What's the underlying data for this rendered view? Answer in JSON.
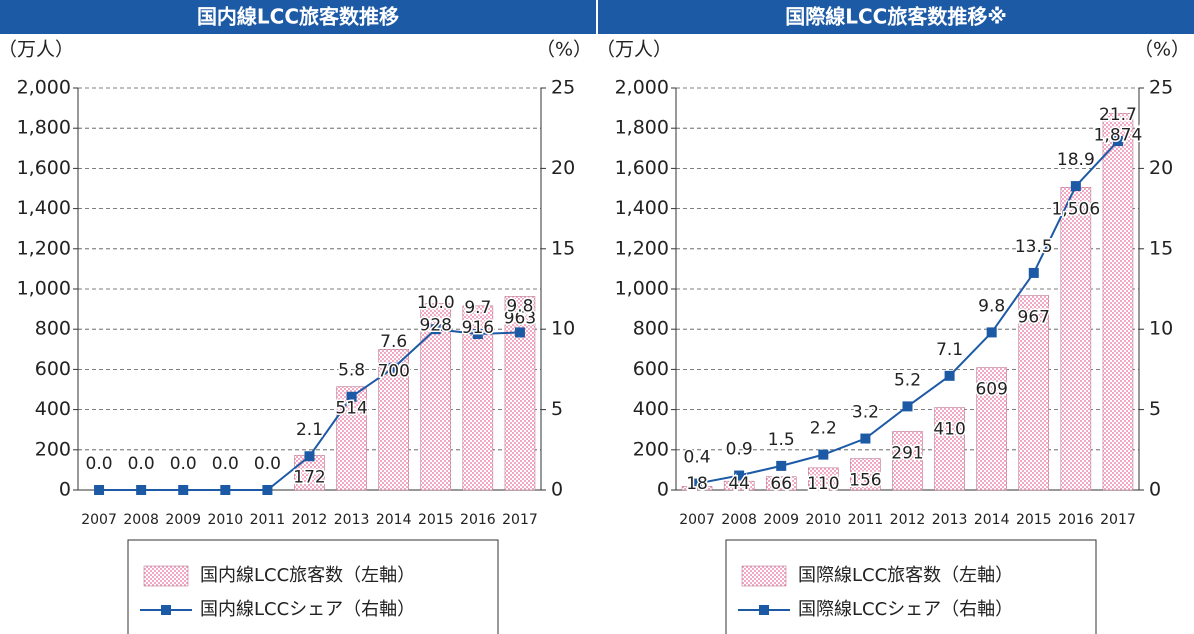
{
  "chart_data": [
    {
      "type": "bar-line",
      "title": "国内線LCC旅客数推移",
      "y_label": "（万人）",
      "y2_label": "（%）",
      "categories": [
        "2007",
        "2008",
        "2009",
        "2010",
        "2011",
        "2012",
        "2013",
        "2014",
        "2015",
        "2016",
        "2017"
      ],
      "series": [
        {
          "name": "国内線LCC旅客数（左軸）",
          "type": "bar",
          "color": "#f2a7c3",
          "values": [
            0,
            0,
            0,
            0,
            0,
            172,
            514,
            700,
            928,
            916,
            963
          ],
          "value_labels": [
            null,
            null,
            null,
            null,
            null,
            "172",
            "514",
            "700",
            "928",
            "916",
            "963"
          ]
        },
        {
          "name": "国内線LCCシェア（右軸）",
          "type": "line",
          "axis": "y2",
          "color": "#1d5aa6",
          "values": [
            0,
            0,
            0,
            0,
            0,
            2.1,
            5.8,
            7.6,
            10.0,
            9.7,
            9.8
          ],
          "value_labels": [
            "0.0",
            "0.0",
            "0.0",
            "0.0",
            "0.0",
            "2.1",
            "5.8",
            "7.6",
            "10.0",
            "9.7",
            "9.8"
          ]
        }
      ],
      "ylim": [
        0,
        2000
      ],
      "yticks": [
        0,
        200,
        400,
        600,
        800,
        {
          "value": 1000,
          "label": "1,000"
        },
        {
          "value": 1200,
          "label": "1,200"
        },
        {
          "value": 1400,
          "label": "1,400"
        },
        {
          "value": 1600,
          "label": "1,600"
        },
        {
          "value": 1800,
          "label": "1,800"
        },
        {
          "value": 2000,
          "label": "2,000"
        }
      ],
      "y2lim": [
        0,
        25
      ],
      "y2ticks": [
        0,
        5,
        10,
        15,
        20,
        25
      ],
      "grid": true
    },
    {
      "type": "bar-line",
      "title": "国際線LCC旅客数推移※",
      "y_label": "（万人）",
      "y2_label": "（%）",
      "categories": [
        "2007",
        "2008",
        "2009",
        "2010",
        "2011",
        "2012",
        "2013",
        "2014",
        "2015",
        "2016",
        "2017"
      ],
      "series": [
        {
          "name": "国際線LCC旅客数（左軸）",
          "type": "bar",
          "color": "#f2a7c3",
          "values": [
            18,
            44,
            66,
            110,
            156,
            291,
            410,
            609,
            967,
            1506,
            1874
          ],
          "value_labels": [
            "18",
            "44",
            "66",
            "110",
            "156",
            "291",
            "410",
            "609",
            "967",
            "1,506",
            "1,874"
          ]
        },
        {
          "name": "国際線LCCシェア（右軸）",
          "type": "line",
          "axis": "y2",
          "color": "#1d5aa6",
          "values": [
            0.4,
            0.9,
            1.5,
            2.2,
            3.2,
            5.2,
            7.1,
            9.8,
            13.5,
            18.9,
            21.7
          ],
          "value_labels": [
            "0.4",
            "0.9",
            "1.5",
            "2.2",
            "3.2",
            "5.2",
            "7.1",
            "9.8",
            "13.5",
            "18.9",
            "21.7"
          ]
        }
      ],
      "ylim": [
        0,
        2000
      ],
      "yticks": [
        0,
        200,
        400,
        600,
        800,
        {
          "value": 1000,
          "label": "1,000"
        },
        {
          "value": 1200,
          "label": "1,200"
        },
        {
          "value": 1400,
          "label": "1,400"
        },
        {
          "value": 1600,
          "label": "1,600"
        },
        {
          "value": 1800,
          "label": "1,800"
        },
        {
          "value": 2000,
          "label": "2,000"
        }
      ],
      "y2lim": [
        0,
        25
      ],
      "y2ticks": [
        0,
        5,
        10,
        15,
        20,
        25
      ],
      "grid": true
    }
  ]
}
